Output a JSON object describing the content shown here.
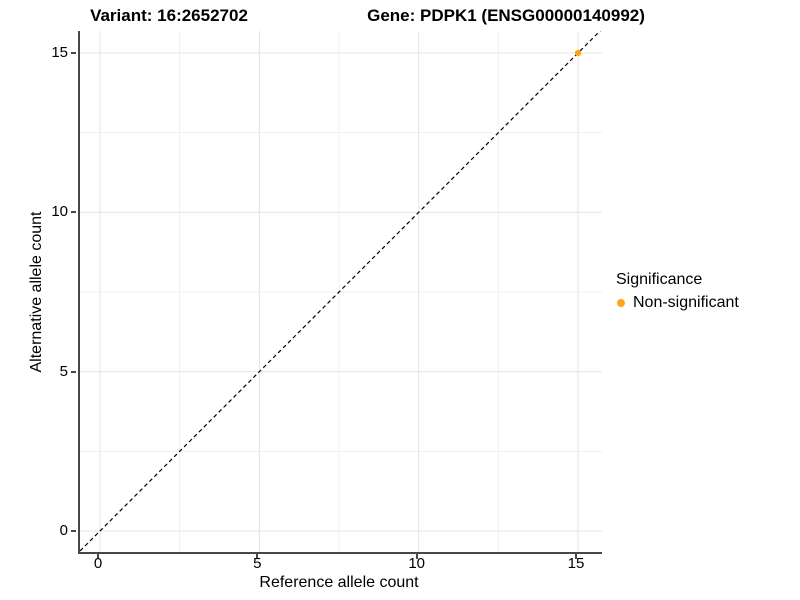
{
  "header": {
    "variant_title": "Variant: 16:2652702",
    "gene_title": "Gene: PDPK1 (ENSG00000140992)"
  },
  "legend": {
    "title": "Significance",
    "items": [
      {
        "label": "Non-significant",
        "color": "#FFA41B"
      }
    ]
  },
  "colors": {
    "axis_line": "#474747",
    "grid_major": "#E4E4E4",
    "grid_minor": "#F0F0F0",
    "reference_line": "#000000",
    "point": "#FFA41B"
  },
  "chart_data": {
    "type": "scatter",
    "title": "Variant: 16:2652702   Gene: PDPK1 (ENSG00000140992)",
    "xlabel": "Reference allele count",
    "ylabel": "Alternative allele count",
    "xlim": [
      -0.78,
      15.78
    ],
    "ylim": [
      -0.78,
      15.78
    ],
    "x_ticks": [
      0,
      5,
      10,
      15
    ],
    "y_ticks": [
      0,
      5,
      10,
      15
    ],
    "minor_ticks": [
      2.5,
      7.5,
      12.5
    ],
    "grid": true,
    "legend_position": "right",
    "reference_line": {
      "type": "identity y=x",
      "style": "dashed",
      "color": "#000000"
    },
    "series": [
      {
        "name": "Non-significant",
        "color": "#FFA41B",
        "points": [
          {
            "x": 15,
            "y": 15
          }
        ]
      }
    ]
  }
}
